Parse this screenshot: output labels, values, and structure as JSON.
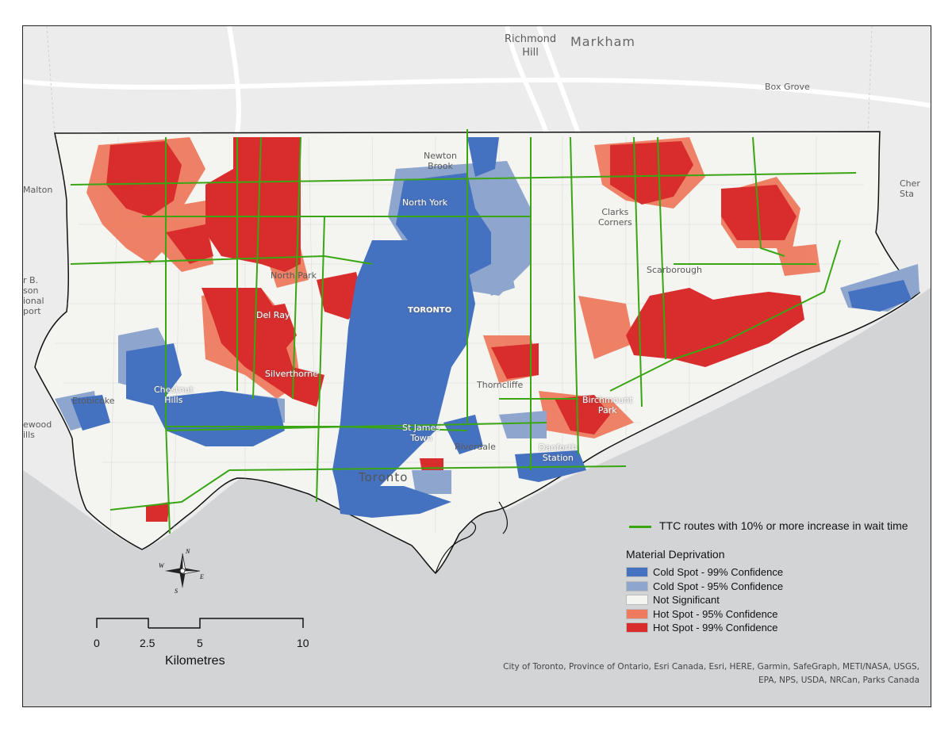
{
  "map": {
    "places": [
      {
        "id": "richmond-hill",
        "text": "Richmond\nHill",
        "style": "city-small"
      },
      {
        "id": "markham",
        "text": "Markham",
        "style": "city"
      },
      {
        "id": "box-grove",
        "text": "Box Grove"
      },
      {
        "id": "malton",
        "text": "Malton"
      },
      {
        "id": "cherry",
        "text": "Cher\nSta"
      },
      {
        "id": "airport",
        "text": "r B.\nson\nional\nport"
      },
      {
        "id": "newton-brook",
        "text": "Newton\nBrook"
      },
      {
        "id": "north-york",
        "text": "North York"
      },
      {
        "id": "clarks-corners",
        "text": "Clarks\nCorners"
      },
      {
        "id": "north-park",
        "text": "North Park"
      },
      {
        "id": "scarborough",
        "text": "Scarborough"
      },
      {
        "id": "toronto-label",
        "text": "TORONTO"
      },
      {
        "id": "del-ray",
        "text": "Del Ray"
      },
      {
        "id": "silverthorne",
        "text": "Silverthorne"
      },
      {
        "id": "thorncliffe",
        "text": "Thorncliffe"
      },
      {
        "id": "etobicoke",
        "text": "Etobicoke"
      },
      {
        "id": "chestnut-hills",
        "text": "Chestnut\nHills"
      },
      {
        "id": "birchmount-park",
        "text": "Birchmount\nPark"
      },
      {
        "id": "st-james-town",
        "text": "St James\nTown"
      },
      {
        "id": "riverdale",
        "text": "Riverdale"
      },
      {
        "id": "danforth-station",
        "text": "Danforth\nStation"
      },
      {
        "id": "toronto-city",
        "text": "Toronto"
      },
      {
        "id": "ewood-hills",
        "text": "ewood\nills"
      }
    ]
  },
  "legend": {
    "ttc_label": "TTC routes with 10% or more increase in wait time",
    "title": "Material Deprivation",
    "items": [
      {
        "label": "Cold Spot - 99% Confidence",
        "color": "#4471c0"
      },
      {
        "label": "Cold Spot - 95% Confidence",
        "color": "#8ea6cd"
      },
      {
        "label": "Not Significant",
        "color": "#f4f4f1"
      },
      {
        "label": "Hot Spot - 95% Confidence",
        "color": "#ee7b5e"
      },
      {
        "label": "Hot Spot - 99% Confidence",
        "color": "#d92d2d"
      }
    ],
    "route_color": "#3aa614"
  },
  "scale": {
    "ticks": [
      "0",
      "2.5",
      "5",
      "10"
    ],
    "units": "Kilometres"
  },
  "compass": {
    "n": "N",
    "s": "S",
    "e": "E",
    "w": "W"
  },
  "credits": {
    "line1": "City of Toronto, Province of Ontario, Esri Canada, Esri, HERE, Garmin, SafeGraph, METI/NASA, USGS,",
    "line2": "EPA, NPS, USDA, NRCan, Parks Canada"
  }
}
